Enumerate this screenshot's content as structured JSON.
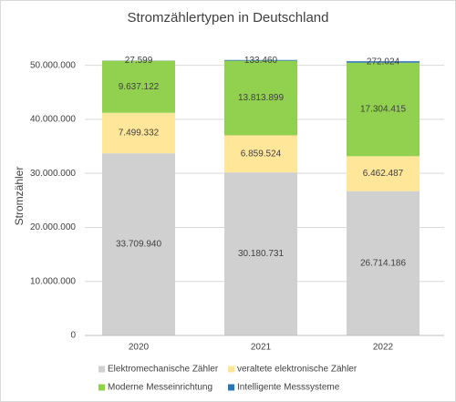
{
  "chart_data": {
    "type": "stacked-bar",
    "title": "Stromzählertypen in Deutschland",
    "ylabel": "Stromzähler",
    "categories": [
      "2020",
      "2021",
      "2022"
    ],
    "series": [
      {
        "name": "Elektromechanische Zähler",
        "color": "#d0d0d0",
        "values": [
          33709940,
          30180731,
          26714186
        ],
        "value_labels": [
          "33.709.940",
          "30.180.731",
          "26.714.186"
        ]
      },
      {
        "name": "veraltete elektronische Zähler",
        "color": "#ffe699",
        "values": [
          7499332,
          6859524,
          6462487
        ],
        "value_labels": [
          "7.499.332",
          "6.859.524",
          "6.462.487"
        ]
      },
      {
        "name": "Moderne Messeinrichtung",
        "color": "#92d050",
        "values": [
          9637122,
          13813899,
          17304415
        ],
        "value_labels": [
          "9.637.122",
          "13.813.899",
          "17.304.415"
        ]
      },
      {
        "name": "Intelligente Messsysteme",
        "color": "#2e75b6",
        "values": [
          27599,
          133460,
          272024
        ],
        "value_labels": [
          "27.599",
          "133.460",
          "272.024"
        ]
      }
    ],
    "ylim": [
      0,
      55000000
    ],
    "yticks": [
      0,
      {
        "value": 10000000,
        "label": "10.000.000"
      },
      {
        "value": 20000000,
        "label": "20.000.000"
      },
      {
        "value": 30000000,
        "label": "30.000.000"
      },
      {
        "value": 40000000,
        "label": "40.000.000"
      },
      {
        "value": 50000000,
        "label": "50.000.000"
      }
    ],
    "grid": true
  }
}
